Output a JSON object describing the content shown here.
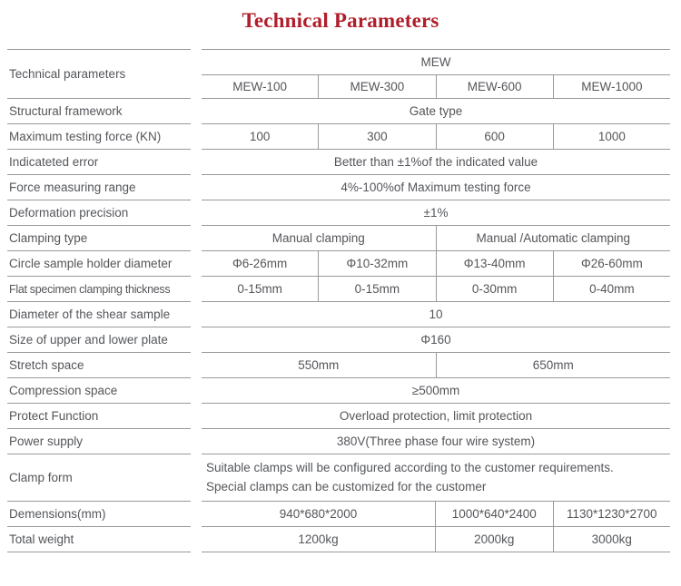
{
  "title": "Technical Parameters",
  "colors": {
    "title": "#b01e2b",
    "line": "#97999c",
    "text": "#54565a"
  },
  "header": {
    "row_label": "Technical parameters",
    "series_label": "MEW",
    "models": [
      "MEW-100",
      "MEW-300",
      "MEW-600",
      "MEW-1000"
    ]
  },
  "rows": [
    {
      "label": "Structural framework",
      "cells": [
        {
          "text": "Gate type",
          "span": 4
        }
      ]
    },
    {
      "label": "Maximum testing force (KN)",
      "cells": [
        {
          "text": "100",
          "span": 1
        },
        {
          "text": "300",
          "span": 1
        },
        {
          "text": "600",
          "span": 1
        },
        {
          "text": "1000",
          "span": 1
        }
      ]
    },
    {
      "label": "Indicateted error",
      "cells": [
        {
          "text": "Better than ±1%of the indicated value",
          "span": 4
        }
      ]
    },
    {
      "label": "Force measuring range",
      "cells": [
        {
          "text": "4%-100%of Maximum testing force",
          "span": 4
        }
      ]
    },
    {
      "label": "Deformation precision",
      "cells": [
        {
          "text": "±1%",
          "span": 4
        }
      ]
    },
    {
      "label": "Clamping type",
      "cells": [
        {
          "text": "Manual clamping",
          "span": 2
        },
        {
          "text": "Manual /Automatic clamping",
          "span": 2
        }
      ]
    },
    {
      "label": "Circle sample holder diameter",
      "cells": [
        {
          "text": "Φ6-26mm",
          "span": 1
        },
        {
          "text": "Φ10-32mm",
          "span": 1
        },
        {
          "text": "Φ13-40mm",
          "span": 1
        },
        {
          "text": "Φ26-60mm",
          "span": 1
        }
      ]
    },
    {
      "label": "Flat specimen clamping thickness",
      "cells": [
        {
          "text": "0-15mm",
          "span": 1
        },
        {
          "text": "0-15mm",
          "span": 1
        },
        {
          "text": "0-30mm",
          "span": 1
        },
        {
          "text": "0-40mm",
          "span": 1
        }
      ]
    },
    {
      "label": "Diameter of the shear sample",
      "cells": [
        {
          "text": "10",
          "span": 4
        }
      ]
    },
    {
      "label": "Size of upper and lower plate",
      "cells": [
        {
          "text": "Φ160",
          "span": 4
        }
      ]
    },
    {
      "label": "Stretch space",
      "cells": [
        {
          "text": "550mm",
          "span": 2
        },
        {
          "text": "650mm",
          "span": 2
        }
      ]
    },
    {
      "label": "Compression space",
      "cells": [
        {
          "text": "≥500mm",
          "span": 4
        }
      ]
    },
    {
      "label": "Protect Function",
      "cells": [
        {
          "text": "Overload protection, limit protection",
          "span": 4
        }
      ]
    },
    {
      "label": "Power supply",
      "cells": [
        {
          "text": "380V(Three phase four wire system)",
          "span": 4
        }
      ]
    },
    {
      "label": "Clamp form",
      "cells": [
        {
          "lines": [
            "Suitable clamps will be configured according to the customer requirements.",
            "Special clamps can be customized for the customer"
          ],
          "span": 4
        }
      ]
    },
    {
      "label": "Demensions(mm)",
      "cells": [
        {
          "text": "940*680*2000",
          "span": 2
        },
        {
          "text": "1000*640*2400",
          "span": 1
        },
        {
          "text": "1130*1230*2700",
          "span": 1
        }
      ]
    },
    {
      "label": "Total weight",
      "cells": [
        {
          "text": "1200kg",
          "span": 2
        },
        {
          "text": "2000kg",
          "span": 1
        },
        {
          "text": "3000kg",
          "span": 1
        }
      ]
    }
  ]
}
